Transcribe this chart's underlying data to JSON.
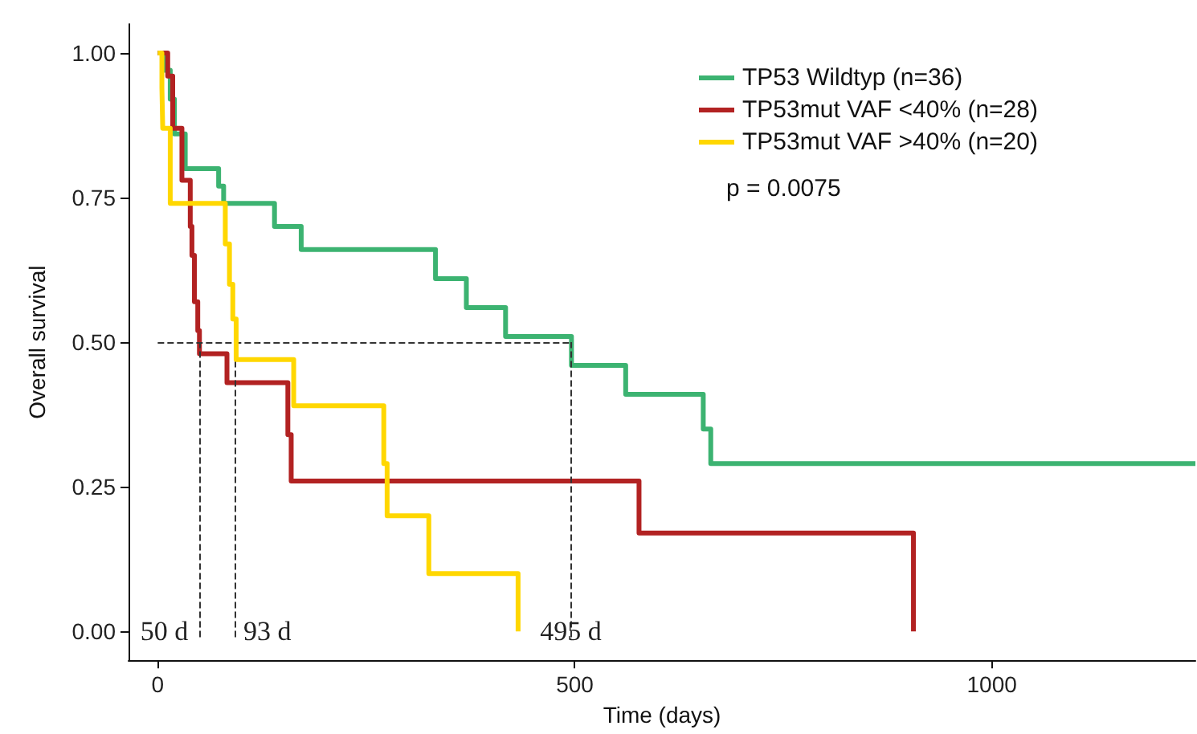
{
  "chart_data": {
    "type": "step",
    "xlabel": "Time (days)",
    "ylabel": "Overall survival",
    "xlim": [
      -35,
      1244
    ],
    "ylim": [
      -0.05,
      1.05
    ],
    "xticks": [
      0,
      500,
      1000
    ],
    "yticks": [
      {
        "value": 0,
        "label": "0.00"
      },
      {
        "value": 0.25,
        "label": "0.25"
      },
      {
        "value": 0.5,
        "label": "0.50"
      },
      {
        "value": 0.75,
        "label": "0.75"
      },
      {
        "value": 1,
        "label": "1.00"
      }
    ],
    "grid": false,
    "legend": "top right",
    "line_style": "solid",
    "marker": "none",
    "annotations": [
      "p = 0.0075"
    ],
    "ref_lines": [
      {
        "axis": "y",
        "value": 0.5,
        "label": null,
        "line_style": "dashed",
        "color": "#333333"
      },
      {
        "axis": "x",
        "value": 50,
        "label": "50 d",
        "line_style": "dashed",
        "color": "#333333"
      },
      {
        "axis": "x",
        "value": 93,
        "label": "93 d",
        "line_style": "dashed",
        "color": "#333333"
      },
      {
        "axis": "x",
        "value": 495,
        "label": "495 d",
        "line_style": "dashed",
        "color": "#333333"
      }
    ],
    "series": [
      {
        "name": "TP53 Wildtyp (n=36)",
        "color": "#3cb371",
        "x": [
          0,
          8,
          15,
          20,
          33,
          73,
          79,
          140,
          172,
          333,
          370,
          417,
          496,
          561,
          654,
          663,
          1244
        ],
        "values": [
          1,
          0.97,
          0.92,
          0.86,
          0.8,
          0.77,
          0.74,
          0.7,
          0.66,
          0.61,
          0.56,
          0.51,
          0.46,
          0.41,
          0.35,
          0.29,
          0.29
        ]
      },
      {
        "name": "TP53mut VAF <40% (n=28)",
        "color": "#b22222",
        "x": [
          0,
          12,
          18,
          29,
          39,
          41,
          44,
          48,
          50,
          83,
          156,
          160,
          577,
          906
        ],
        "values": [
          1,
          0.96,
          0.87,
          0.78,
          0.7,
          0.65,
          0.57,
          0.52,
          0.48,
          0.43,
          0.34,
          0.26,
          0.17,
          0
        ]
      },
      {
        "name": "TP53mut VAF >40% (n=20)",
        "color": "#ffd700",
        "x": [
          0,
          5,
          6,
          15,
          81,
          86,
          90,
          94,
          163,
          271,
          275,
          325,
          432
        ],
        "values": [
          1,
          0.94,
          0.87,
          0.74,
          0.67,
          0.6,
          0.54,
          0.47,
          0.39,
          0.29,
          0.2,
          0.1,
          0
        ]
      }
    ]
  }
}
